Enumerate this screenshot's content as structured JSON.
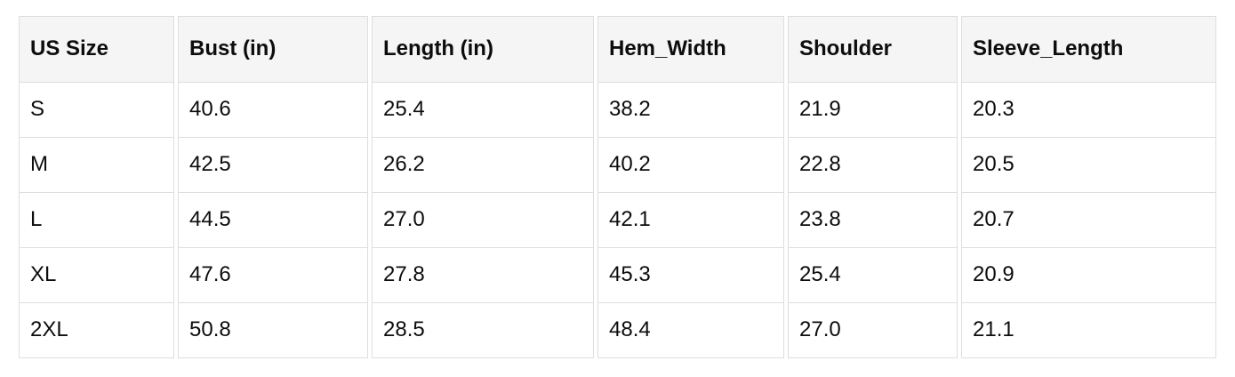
{
  "chart_data": {
    "type": "table",
    "columns": [
      "US Size",
      "Bust (in)",
      "Length (in)",
      "Hem_Width",
      "Shoulder",
      "Sleeve_Length"
    ],
    "rows": [
      [
        "S",
        "40.6",
        "25.4",
        "38.2",
        "21.9",
        "20.3"
      ],
      [
        "M",
        "42.5",
        "26.2",
        "40.2",
        "22.8",
        "20.5"
      ],
      [
        "L",
        "44.5",
        "27.0",
        "42.1",
        "23.8",
        "20.7"
      ],
      [
        "XL",
        "47.6",
        "27.8",
        "45.3",
        "25.4",
        "20.9"
      ],
      [
        "2XL",
        "50.8",
        "28.5",
        "48.4",
        "27.0",
        "21.1"
      ]
    ]
  },
  "colors": {
    "header_bg": "#f5f5f5",
    "border": "#dedede",
    "row_bg": "#ffffff",
    "text": "#0d0d0d"
  }
}
